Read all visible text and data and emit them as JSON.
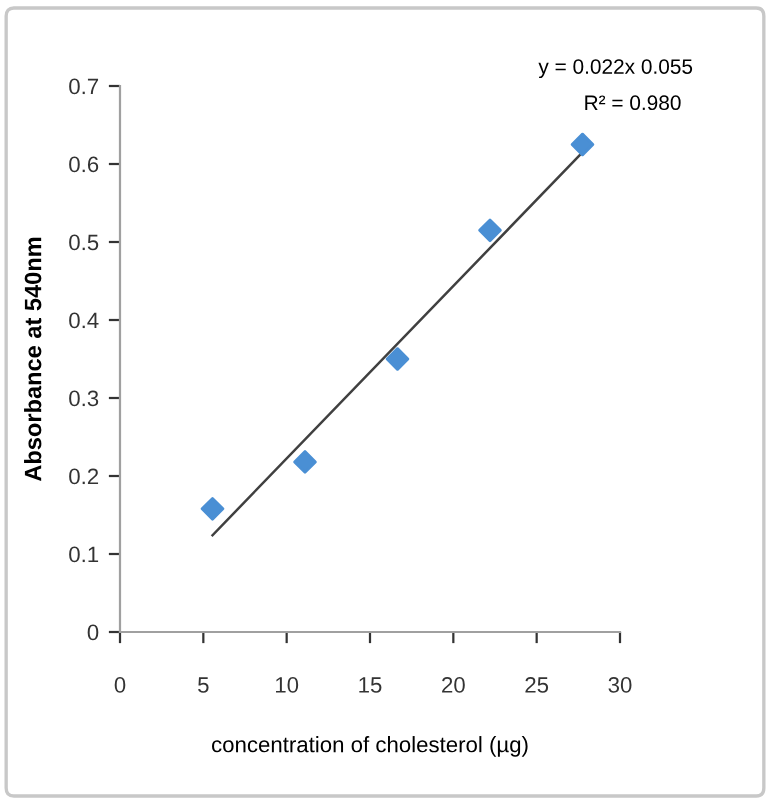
{
  "chart_data": {
    "type": "scatter",
    "xlabel": "concentration of cholesterol (µg)",
    "ylabel": "Absorbance at 540nm",
    "series": [
      {
        "color": "#4a8fd4",
        "marker": "diamond",
        "x": [
          5.55,
          11.1,
          16.65,
          22.2,
          27.75
        ],
        "values": [
          0.158,
          0.218,
          0.35,
          0.515,
          0.625
        ]
      },
      {
        "type": "line",
        "color": "#404040",
        "marker": "none",
        "line_style": "solid",
        "x": [
          5.55,
          27.75
        ],
        "values": [
          0.124,
          0.615
        ]
      }
    ],
    "annotations": [
      "y = 0.022x 0.055",
      "R² = 0.980"
    ],
    "xlim": [
      0,
      30
    ],
    "xticks": [
      0,
      5,
      10,
      15,
      20,
      25,
      30
    ],
    "ylim": [
      0,
      0.7
    ],
    "yticks": [
      0,
      0.1,
      0.2,
      0.3,
      0.4,
      0.5,
      0.6,
      0.7
    ],
    "grid": false,
    "legend": false
  }
}
